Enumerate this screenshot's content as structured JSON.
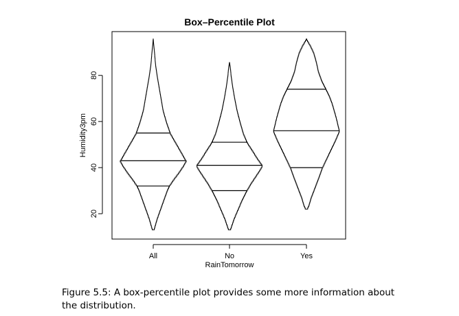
{
  "chart_data": {
    "type": "box-percentile",
    "title": "Box–Percentile Plot",
    "xlabel": "RainTomorrow",
    "ylabel": "Humidity3pm",
    "categories": [
      "All",
      "No",
      "Yes"
    ],
    "yticks": [
      20,
      40,
      60,
      80
    ],
    "ylim": [
      9,
      99
    ],
    "series": [
      {
        "category": "All",
        "min": 13,
        "max": 96,
        "q1": 32,
        "median": 43,
        "q3": 55,
        "shape": [
          [
            13,
            0.02
          ],
          [
            15,
            0.06
          ],
          [
            18,
            0.12
          ],
          [
            22,
            0.22
          ],
          [
            26,
            0.32
          ],
          [
            30,
            0.42
          ],
          [
            32,
            0.48
          ],
          [
            35,
            0.62
          ],
          [
            38,
            0.78
          ],
          [
            41,
            0.92
          ],
          [
            43,
            1.0
          ],
          [
            46,
            0.88
          ],
          [
            50,
            0.72
          ],
          [
            55,
            0.52
          ],
          [
            60,
            0.4
          ],
          [
            65,
            0.3
          ],
          [
            70,
            0.24
          ],
          [
            75,
            0.18
          ],
          [
            80,
            0.12
          ],
          [
            85,
            0.07
          ],
          [
            90,
            0.04
          ],
          [
            96,
            0.0
          ]
        ]
      },
      {
        "category": "No",
        "min": 13,
        "max": 86,
        "q1": 30,
        "median": 41,
        "q3": 51,
        "shape": [
          [
            13,
            0.02
          ],
          [
            15,
            0.07
          ],
          [
            18,
            0.14
          ],
          [
            22,
            0.26
          ],
          [
            26,
            0.38
          ],
          [
            30,
            0.52
          ],
          [
            33,
            0.64
          ],
          [
            36,
            0.78
          ],
          [
            39,
            0.92
          ],
          [
            41,
            1.0
          ],
          [
            44,
            0.85
          ],
          [
            47,
            0.72
          ],
          [
            51,
            0.54
          ],
          [
            55,
            0.42
          ],
          [
            60,
            0.32
          ],
          [
            65,
            0.23
          ],
          [
            70,
            0.16
          ],
          [
            75,
            0.1
          ],
          [
            80,
            0.05
          ],
          [
            83,
            0.03
          ],
          [
            86,
            0.0
          ]
        ]
      },
      {
        "category": "Yes",
        "min": 22,
        "max": 96,
        "q1": 40,
        "median": 56,
        "q3": 74,
        "shape": [
          [
            22,
            0.02
          ],
          [
            24,
            0.08
          ],
          [
            27,
            0.14
          ],
          [
            30,
            0.22
          ],
          [
            33,
            0.3
          ],
          [
            36,
            0.38
          ],
          [
            40,
            0.48
          ],
          [
            43,
            0.58
          ],
          [
            46,
            0.68
          ],
          [
            49,
            0.78
          ],
          [
            52,
            0.88
          ],
          [
            56,
            1.0
          ],
          [
            59,
            0.95
          ],
          [
            62,
            0.9
          ],
          [
            65,
            0.84
          ],
          [
            68,
            0.78
          ],
          [
            71,
            0.7
          ],
          [
            74,
            0.6
          ],
          [
            78,
            0.46
          ],
          [
            82,
            0.36
          ],
          [
            86,
            0.3
          ],
          [
            90,
            0.22
          ],
          [
            93,
            0.12
          ],
          [
            96,
            0.0
          ]
        ]
      }
    ]
  },
  "caption": "Figure 5.5: A box-percentile plot provides some more information about the distribution."
}
